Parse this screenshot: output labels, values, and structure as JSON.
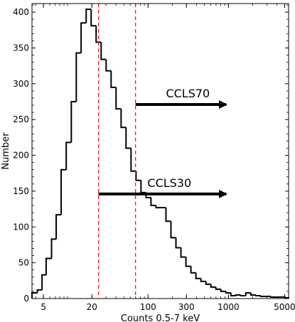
{
  "chart_data": {
    "type": "histogram",
    "xlabel": "Counts 0.5-7 keV",
    "ylabel": "Number",
    "xscale": "log",
    "xlim": [
      3.6,
      5600
    ],
    "ylim": [
      0,
      412
    ],
    "xticks": [
      5,
      20,
      100,
      300,
      1000,
      5000
    ],
    "xtick_labels": [
      "5",
      "20",
      "100",
      "300",
      "1000",
      "5000"
    ],
    "yticks": [
      0,
      50,
      100,
      150,
      200,
      250,
      300,
      350,
      400
    ],
    "ytick_labels": [
      "0",
      "50",
      "100",
      "150",
      "200",
      "250",
      "300",
      "350",
      "400"
    ],
    "bin_edges": [
      3.6,
      4.2,
      4.8,
      5.4,
      6.3,
      7.2,
      8.3,
      9.6,
      11.1,
      12.8,
      14.7,
      17.0,
      19.6,
      22.6,
      26.1,
      30.1,
      34.7,
      40.0,
      46.2,
      53.2,
      61.4,
      70.9,
      81.7,
      94.3,
      108.8,
      125.5,
      144.8,
      167.0,
      192.7,
      222.3,
      256.5,
      295.9,
      341.4,
      393.9,
      454.4,
      524.3,
      604.9,
      697.8,
      805.1,
      928.8,
      1071.6,
      1236.3,
      1426.3,
      1645.5,
      1898.4,
      2190.2,
      2526.8,
      2915.1,
      3363.1,
      3880.0,
      4476.3,
      5164.3,
      5600
    ],
    "counts": [
      8,
      12,
      33,
      56,
      83,
      117,
      180,
      218,
      275,
      343,
      385,
      404,
      381,
      358,
      334,
      318,
      295,
      265,
      239,
      210,
      178,
      165,
      148,
      141,
      130,
      127,
      127,
      108,
      85,
      71,
      58,
      45,
      36,
      28,
      24,
      20,
      16,
      13,
      10,
      8,
      4,
      5,
      4,
      8,
      5,
      4,
      3,
      3,
      2,
      2,
      2,
      1
    ],
    "vlines": [
      {
        "x": 24.2,
        "color": "#ff0000",
        "style": "dashed"
      },
      {
        "x": 69.9,
        "color": "#ff0000",
        "style": "dashed"
      }
    ],
    "annotations": [
      {
        "text": "CCLS70",
        "arrow_from_x": 69.9,
        "arrow_y": 271
      },
      {
        "text": "CCLS30",
        "arrow_from_x": 24.2,
        "arrow_y": 146
      }
    ]
  }
}
